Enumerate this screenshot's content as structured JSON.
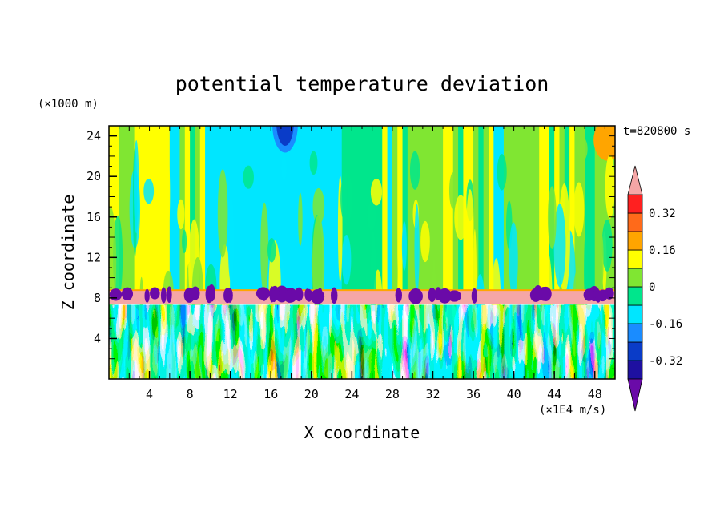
{
  "chart_data": {
    "type": "heatmap",
    "title": "potential temperature deviation",
    "xlabel": "X coordinate",
    "ylabel": "Z coordinate",
    "x_unit": "(×1E4 m/s)",
    "y_unit": "(×1000 m)",
    "time_label": "t=820800 s",
    "xlim": [
      0,
      50
    ],
    "ylim": [
      0,
      25
    ],
    "x_ticks": [
      4,
      8,
      12,
      16,
      20,
      24,
      28,
      32,
      36,
      40,
      44,
      48
    ],
    "y_ticks": [
      4,
      8,
      12,
      16,
      20,
      24
    ],
    "colorbar": {
      "levels": [
        -0.48,
        -0.4,
        -0.32,
        -0.24,
        -0.16,
        -0.08,
        0,
        0.08,
        0.16,
        0.24,
        0.32,
        0.4,
        0.48
      ],
      "colors": [
        "#6a0aa8",
        "#1e10a0",
        "#0a3cc8",
        "#1a8cff",
        "#00e6ff",
        "#00e68c",
        "#80e632",
        "#ffff00",
        "#ffa500",
        "#ff6a1a",
        "#ff2020",
        "#f5a6a6"
      ],
      "labels": [
        "0.32",
        "0.16",
        "0",
        "-0.16",
        "-0.32"
      ],
      "label_values": [
        0.32,
        0.16,
        0,
        -0.16,
        -0.32
      ],
      "extend": "both"
    }
  }
}
